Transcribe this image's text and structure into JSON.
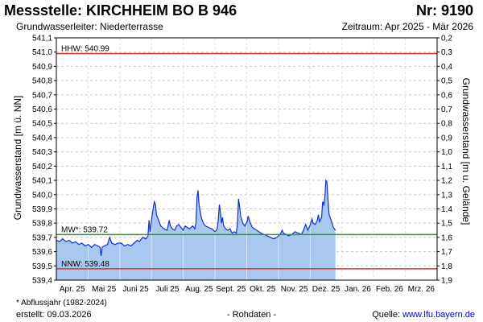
{
  "header": {
    "title": "Messstelle: KIRCHHEIM BO B 946",
    "nr": "Nr: 9190",
    "aquifer": "Grundwasserleiter:   Niederterrasse",
    "period": "Zeitraum: Apr 2025 - Mär 2026"
  },
  "footer": {
    "footnote": "* Abflussjahr (1982-2024)",
    "created": "erstellt:  09.03.2026",
    "rawdata": "- Rohdaten -",
    "source_label": "Quelle: ",
    "source_link": "www.lfu.bayern.de"
  },
  "colors": {
    "area_fill": "#a8c8f0",
    "line": "#1530c8",
    "hhw_line": "#e03030",
    "nnw_line": "#e03030",
    "mw_line": "#2a9a2a",
    "grid": "#c8c8c8"
  },
  "chart_data": {
    "type": "area",
    "ylabel_left": "Grundwasserstand [m ü. NN]",
    "ylabel_right": "Grundwasserstand [m u. Gelände]",
    "ylim": [
      539.4,
      541.1
    ],
    "y_ticks": [
      "541,1",
      "541,0",
      "540,9",
      "540,8",
      "540,7",
      "540,6",
      "540,5",
      "540,4",
      "540,3",
      "540,2",
      "540,1",
      "540,0",
      "539,9",
      "539,8",
      "539,7",
      "539,6",
      "539,5",
      "539,4"
    ],
    "y_ticks_right": [
      "0,2",
      "0,3",
      "0,4",
      "0,5",
      "0,6",
      "0,7",
      "0,8",
      "0,9",
      "1,0",
      "1,1",
      "1,2",
      "1,3",
      "1,4",
      "1,5",
      "1,6",
      "1,7",
      "1,8",
      "1,9"
    ],
    "x_ticks": [
      "Apr. 25",
      "Mai 25",
      "Juni 25",
      "Juli 25",
      "Aug. 25",
      "Sept. 25",
      "Okt. 25",
      "Nov. 25",
      "Dez. 25",
      "Jan. 26",
      "Feb. 26",
      "Mrz. 26"
    ],
    "x_range_days": [
      0,
      334
    ],
    "grid": true,
    "reference_lines": [
      {
        "key": "hhw",
        "label": "HHW: 540.99",
        "value": 540.99
      },
      {
        "key": "mw",
        "label": "MW*: 539.72",
        "value": 539.72
      },
      {
        "key": "nnw",
        "label": "NNW: 539.48",
        "value": 539.48
      }
    ],
    "series": [
      {
        "points": [
          [
            0,
            539.68
          ],
          [
            3,
            539.67
          ],
          [
            6,
            539.69
          ],
          [
            9,
            539.67
          ],
          [
            12,
            539.68
          ],
          [
            15,
            539.66
          ],
          [
            18,
            539.67
          ],
          [
            21,
            539.65
          ],
          [
            24,
            539.66
          ],
          [
            27,
            539.64
          ],
          [
            30,
            539.65
          ],
          [
            33,
            539.63
          ],
          [
            36,
            539.65
          ],
          [
            39,
            539.64
          ],
          [
            41,
            539.63
          ],
          [
            42,
            539.57
          ],
          [
            43,
            539.63
          ],
          [
            45,
            539.64
          ],
          [
            48,
            539.65
          ],
          [
            50,
            539.7
          ],
          [
            52,
            539.66
          ],
          [
            55,
            539.65
          ],
          [
            58,
            539.66
          ],
          [
            61,
            539.66
          ],
          [
            64,
            539.64
          ],
          [
            67,
            539.65
          ],
          [
            70,
            539.64
          ],
          [
            73,
            539.66
          ],
          [
            76,
            539.68
          ],
          [
            78,
            539.67
          ],
          [
            81,
            539.7
          ],
          [
            84,
            539.69
          ],
          [
            86,
            539.71
          ],
          [
            87,
            539.82
          ],
          [
            88,
            539.74
          ],
          [
            90,
            539.86
          ],
          [
            92,
            539.95
          ],
          [
            93,
            539.93
          ],
          [
            94,
            539.86
          ],
          [
            96,
            539.82
          ],
          [
            98,
            539.78
          ],
          [
            101,
            539.76
          ],
          [
            104,
            539.75
          ],
          [
            106,
            539.82
          ],
          [
            107,
            539.78
          ],
          [
            109,
            539.76
          ],
          [
            111,
            539.75
          ],
          [
            113,
            539.78
          ],
          [
            115,
            539.79
          ],
          [
            117,
            539.77
          ],
          [
            119,
            539.75
          ],
          [
            121,
            539.78
          ],
          [
            123,
            539.77
          ],
          [
            125,
            539.76
          ],
          [
            128,
            539.78
          ],
          [
            130,
            539.76
          ],
          [
            131,
            539.8
          ],
          [
            132,
            539.98
          ],
          [
            133,
            540.03
          ],
          [
            134,
            539.93
          ],
          [
            136,
            539.84
          ],
          [
            138,
            539.8
          ],
          [
            140,
            539.78
          ],
          [
            143,
            539.77
          ],
          [
            146,
            539.76
          ],
          [
            149,
            539.74
          ],
          [
            151,
            539.76
          ],
          [
            152,
            539.82
          ],
          [
            153,
            539.93
          ],
          [
            154,
            539.88
          ],
          [
            155,
            539.8
          ],
          [
            156,
            539.84
          ],
          [
            157,
            539.78
          ],
          [
            159,
            539.76
          ],
          [
            161,
            539.75
          ],
          [
            163,
            539.76
          ],
          [
            165,
            539.73
          ],
          [
            167,
            539.74
          ],
          [
            169,
            539.73
          ],
          [
            170,
            539.8
          ],
          [
            171,
            539.97
          ],
          [
            172,
            539.92
          ],
          [
            173,
            539.85
          ],
          [
            175,
            539.8
          ],
          [
            177,
            539.78
          ],
          [
            179,
            539.81
          ],
          [
            180,
            539.85
          ],
          [
            182,
            539.8
          ],
          [
            184,
            539.77
          ],
          [
            186,
            539.76
          ],
          [
            188,
            539.75
          ],
          [
            190,
            539.74
          ],
          [
            192,
            539.73
          ],
          [
            195,
            539.72
          ],
          [
            198,
            539.71
          ],
          [
            201,
            539.7
          ],
          [
            204,
            539.69
          ],
          [
            207,
            539.7
          ],
          [
            210,
            539.72
          ],
          [
            212,
            539.75
          ],
          [
            213,
            539.73
          ],
          [
            216,
            539.72
          ],
          [
            218,
            539.71
          ],
          [
            221,
            539.72
          ],
          [
            224,
            539.74
          ],
          [
            227,
            539.73
          ],
          [
            230,
            539.72
          ],
          [
            232,
            539.75
          ],
          [
            234,
            539.79
          ],
          [
            236,
            539.75
          ],
          [
            238,
            539.78
          ],
          [
            240,
            539.83
          ],
          [
            241,
            539.8
          ],
          [
            243,
            539.79
          ],
          [
            245,
            539.82
          ],
          [
            246,
            539.86
          ],
          [
            247,
            539.81
          ],
          [
            249,
            539.84
          ],
          [
            250,
            539.95
          ],
          [
            251,
            539.93
          ],
          [
            252,
            539.98
          ],
          [
            253,
            540.1
          ],
          [
            254,
            540.09
          ],
          [
            255,
            539.96
          ],
          [
            256,
            539.86
          ],
          [
            258,
            539.82
          ],
          [
            260,
            539.77
          ],
          [
            262,
            539.75
          ]
        ]
      }
    ]
  }
}
